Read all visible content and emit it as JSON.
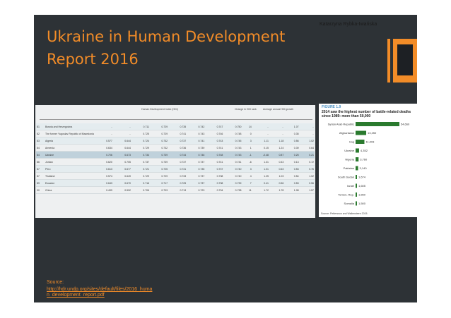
{
  "slide": {
    "title": "Ukraine in Human Development Report 2016",
    "author": "Katarzyna Rybka-Iwańska",
    "accent_color": "#f28c28",
    "source_label": "Source:",
    "source_link": "http://hdr.undp.org/sites/default/files/2016_human_development_report.pdf"
  },
  "hdi_table": {
    "header_index": "Human Development Index (HDI)",
    "header_change": "Change in HDI rank",
    "header_growth": "Average annual HDI growth",
    "rows": [
      {
        "rank": "81",
        "country": "Bosnia and Herzegovina",
        "values": [
          "..",
          "..",
          "0.711",
          "0.729",
          "0.735",
          "0.742",
          "0.747",
          "0.750",
          "14",
          "..",
          "..",
          "1.07",
          ".."
        ]
      },
      {
        "rank": "82",
        "country": "The former Yugoslav Republic of Macedonia",
        "values": [
          "..",
          "..",
          "0.725",
          "0.729",
          "0.741",
          "0.743",
          "0.746",
          "0.748",
          "0",
          "..",
          "..",
          "0.35",
          ".."
        ]
      },
      {
        "rank": "83",
        "country": "Algeria",
        "values": [
          "0.577",
          "0.644",
          "0.724",
          "0.732",
          "0.737",
          "0.741",
          "0.743",
          "0.745",
          "3",
          "1.11",
          "1.18",
          "0.56",
          "1.02"
        ]
      },
      {
        "rank": "84",
        "country": "Armenia",
        "values": [
          "0.634",
          "0.644",
          "0.729",
          "0.732",
          "0.736",
          "0.739",
          "0.741",
          "0.743",
          "1",
          "0.15",
          "1.24",
          "0.39",
          "0.64"
        ]
      },
      {
        "rank": "84",
        "country": "Ukraine",
        "values": [
          "0.706",
          "0.673",
          "0.734",
          "0.739",
          "0.744",
          "0.746",
          "0.748",
          "0.743",
          "-1",
          "-0.48",
          "0.87",
          "0.25",
          "0.21"
        ]
      },
      {
        "rank": "86",
        "country": "Jordan",
        "values": [
          "0.620",
          "0.705",
          "0.737",
          "0.739",
          "0.737",
          "0.737",
          "0.741",
          "0.741",
          "-6",
          "1.31",
          "0.43",
          "0.13",
          "0.72"
        ]
      },
      {
        "rank": "87",
        "country": "Peru",
        "values": [
          "0.613",
          "0.677",
          "0.721",
          "0.725",
          "0.731",
          "0.735",
          "0.737",
          "0.740",
          "3",
          "1.01",
          "0.63",
          "0.53",
          "0.76"
        ]
      },
      {
        "rank": "87",
        "country": "Thailand",
        "values": [
          "0.574",
          "0.649",
          "0.729",
          "0.729",
          "0.733",
          "0.737",
          "0.738",
          "0.740",
          "4",
          "1.25",
          "1.03",
          "0.54",
          "1.02"
        ]
      },
      {
        "rank": "89",
        "country": "Ecuador",
        "values": [
          "0.643",
          "0.670",
          "0.716",
          "0.717",
          "0.725",
          "0.737",
          "0.738",
          "0.739",
          "7",
          "0.41",
          "0.56",
          "0.53",
          "0.56"
        ]
      },
      {
        "rank": "90",
        "country": "China",
        "values": [
          "0.499",
          "0.592",
          "0.706",
          "0.703",
          "0.713",
          "0.723",
          "0.734",
          "0.738",
          "11",
          "1.72",
          "1.78",
          "1.08",
          "1.57"
        ]
      }
    ]
  },
  "figure": {
    "label": "FIGURE 1.9",
    "caption": "2014 saw the highest number of battle-related deaths since 1989: more than 50,000",
    "source": "Source: Pettersson and Wallensteen 2015.",
    "bar_color": "#2a7a2e",
    "chart_data": {
      "type": "bar",
      "orientation": "horizontal",
      "categories": [
        "Syrian Arab Republic",
        "Afghanistan",
        "Iraq",
        "Ukraine",
        "Nigeria",
        "Pakistan",
        "South Sudan",
        "Israel",
        "Yemen, Rep.",
        "Somalia"
      ],
      "values": [
        54660,
        13250,
        11003,
        4352,
        3760,
        3140,
        1674,
        1605,
        1550,
        1500
      ],
      "value_labels": [
        "54,660",
        "13,250",
        "11,003",
        "4,352",
        "3,760",
        "3,140",
        "1,674",
        "1,605",
        "1,550",
        "1,500"
      ],
      "title": "",
      "xlabel": "",
      "ylabel": ""
    }
  }
}
